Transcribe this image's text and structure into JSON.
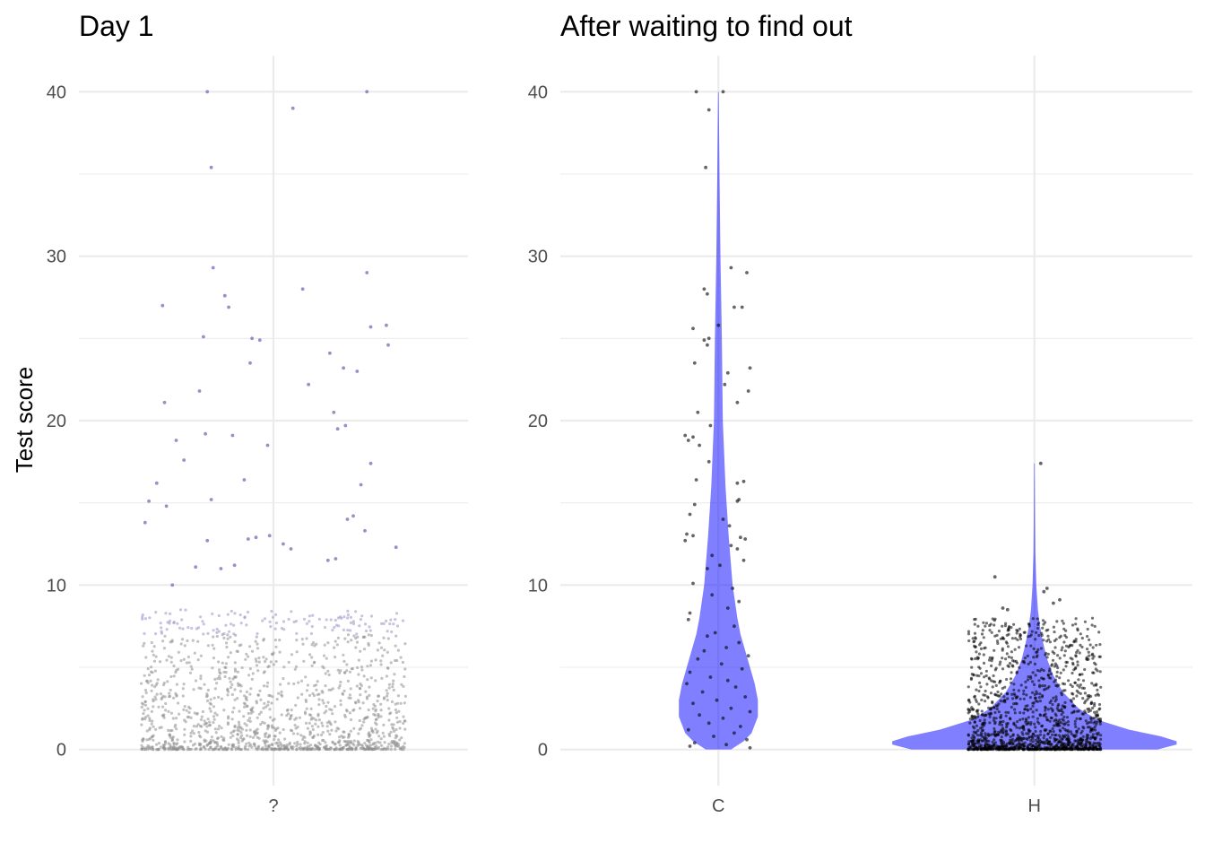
{
  "chart_data": [
    {
      "type": "scatter",
      "title": "Day 1",
      "ylabel": "Test score",
      "xlabel": "",
      "ylim": [
        -2.2,
        42.2
      ],
      "yticks": [
        0,
        10,
        20,
        30,
        40
      ],
      "grid": true,
      "categories": [
        "?"
      ],
      "point_color": "#7d74b8",
      "low_point_color": "#8f8f8f",
      "jitter_points": [
        {
          "category": "?",
          "y": 40.0,
          "dx": -0.34
        },
        {
          "category": "?",
          "y": 39.0,
          "dx": 0.1
        },
        {
          "category": "?",
          "y": 40.0,
          "dx": 0.48
        },
        {
          "category": "?",
          "y": 35.4,
          "dx": -0.32
        },
        {
          "category": "?",
          "y": 29.3,
          "dx": -0.31
        },
        {
          "category": "?",
          "y": 29.0,
          "dx": 0.48
        },
        {
          "category": "?",
          "y": 28.0,
          "dx": 0.15
        },
        {
          "category": "?",
          "y": 27.6,
          "dx": -0.25
        },
        {
          "category": "?",
          "y": 27.0,
          "dx": -0.57
        },
        {
          "category": "?",
          "y": 26.9,
          "dx": -0.23
        },
        {
          "category": "?",
          "y": 25.8,
          "dx": 0.58
        },
        {
          "category": "?",
          "y": 25.7,
          "dx": 0.5
        },
        {
          "category": "?",
          "y": 25.1,
          "dx": -0.36
        },
        {
          "category": "?",
          "y": 25.0,
          "dx": -0.11
        },
        {
          "category": "?",
          "y": 24.9,
          "dx": -0.07
        },
        {
          "category": "?",
          "y": 24.6,
          "dx": 0.59
        },
        {
          "category": "?",
          "y": 24.1,
          "dx": 0.29
        },
        {
          "category": "?",
          "y": 23.5,
          "dx": -0.12
        },
        {
          "category": "?",
          "y": 23.2,
          "dx": 0.36
        },
        {
          "category": "?",
          "y": 23.0,
          "dx": 0.43
        },
        {
          "category": "?",
          "y": 22.2,
          "dx": 0.18
        },
        {
          "category": "?",
          "y": 21.8,
          "dx": -0.38
        },
        {
          "category": "?",
          "y": 21.1,
          "dx": -0.56
        },
        {
          "category": "?",
          "y": 20.5,
          "dx": 0.31
        },
        {
          "category": "?",
          "y": 19.7,
          "dx": 0.37
        },
        {
          "category": "?",
          "y": 19.5,
          "dx": 0.33
        },
        {
          "category": "?",
          "y": 19.2,
          "dx": -0.35
        },
        {
          "category": "?",
          "y": 19.1,
          "dx": -0.21
        },
        {
          "category": "?",
          "y": 18.8,
          "dx": -0.5
        },
        {
          "category": "?",
          "y": 18.5,
          "dx": -0.03
        },
        {
          "category": "?",
          "y": 17.6,
          "dx": -0.46
        },
        {
          "category": "?",
          "y": 17.4,
          "dx": 0.5
        },
        {
          "category": "?",
          "y": 16.4,
          "dx": -0.15
        },
        {
          "category": "?",
          "y": 16.2,
          "dx": -0.6
        },
        {
          "category": "?",
          "y": 16.1,
          "dx": 0.45
        },
        {
          "category": "?",
          "y": 15.2,
          "dx": -0.32
        },
        {
          "category": "?",
          "y": 15.1,
          "dx": -0.64
        },
        {
          "category": "?",
          "y": 14.8,
          "dx": -0.55
        },
        {
          "category": "?",
          "y": 14.2,
          "dx": 0.41
        },
        {
          "category": "?",
          "y": 14.0,
          "dx": 0.38
        },
        {
          "category": "?",
          "y": 13.8,
          "dx": -0.66
        },
        {
          "category": "?",
          "y": 13.3,
          "dx": 0.47
        },
        {
          "category": "?",
          "y": 13.0,
          "dx": -0.02
        },
        {
          "category": "?",
          "y": 12.9,
          "dx": -0.09
        },
        {
          "category": "?",
          "y": 12.8,
          "dx": -0.13
        },
        {
          "category": "?",
          "y": 12.7,
          "dx": -0.34
        },
        {
          "category": "?",
          "y": 12.5,
          "dx": 0.05
        },
        {
          "category": "?",
          "y": 12.3,
          "dx": 0.63
        },
        {
          "category": "?",
          "y": 12.2,
          "dx": 0.09
        },
        {
          "category": "?",
          "y": 11.6,
          "dx": 0.32
        },
        {
          "category": "?",
          "y": 11.5,
          "dx": 0.28
        },
        {
          "category": "?",
          "y": 11.2,
          "dx": -0.2
        },
        {
          "category": "?",
          "y": 11.1,
          "dx": -0.4
        },
        {
          "category": "?",
          "y": 11.0,
          "dx": -0.27
        },
        {
          "category": "?",
          "y": 10.0,
          "dx": -0.52
        }
      ],
      "dense_cluster": {
        "category": "?",
        "count": 1400,
        "y_range": [
          0,
          8.5
        ],
        "spread": 0.68
      }
    },
    {
      "type": "scatter",
      "title": "After waiting to find out",
      "ylabel": "",
      "xlabel": "",
      "ylim": [
        -2.2,
        42.2
      ],
      "yticks": [
        0,
        10,
        20,
        30,
        40
      ],
      "grid": true,
      "categories": [
        "C",
        "H"
      ],
      "point_color": "#000000",
      "violin_color": "#0000ff",
      "violins": [
        {
          "category": "C",
          "profile": [
            {
              "y": 0.0,
              "w": 0.08
            },
            {
              "y": 0.5,
              "w": 0.16
            },
            {
              "y": 1.0,
              "w": 0.21
            },
            {
              "y": 2.0,
              "w": 0.25
            },
            {
              "y": 3.0,
              "w": 0.25
            },
            {
              "y": 4.0,
              "w": 0.23
            },
            {
              "y": 5.0,
              "w": 0.2
            },
            {
              "y": 6.0,
              "w": 0.17
            },
            {
              "y": 7.0,
              "w": 0.14
            },
            {
              "y": 8.0,
              "w": 0.12
            },
            {
              "y": 10.0,
              "w": 0.09
            },
            {
              "y": 13.0,
              "w": 0.065
            },
            {
              "y": 16.0,
              "w": 0.045
            },
            {
              "y": 20.0,
              "w": 0.028
            },
            {
              "y": 25.0,
              "w": 0.022
            },
            {
              "y": 30.0,
              "w": 0.013
            },
            {
              "y": 35.0,
              "w": 0.007
            },
            {
              "y": 40.0,
              "w": 0.002
            }
          ]
        },
        {
          "category": "H",
          "profile": [
            {
              "y": 0.0,
              "w": 0.78
            },
            {
              "y": 0.3,
              "w": 0.9
            },
            {
              "y": 0.5,
              "w": 0.9
            },
            {
              "y": 0.8,
              "w": 0.8
            },
            {
              "y": 1.2,
              "w": 0.6
            },
            {
              "y": 1.8,
              "w": 0.4
            },
            {
              "y": 2.5,
              "w": 0.28
            },
            {
              "y": 3.5,
              "w": 0.18
            },
            {
              "y": 4.5,
              "w": 0.12
            },
            {
              "y": 5.5,
              "w": 0.08
            },
            {
              "y": 6.5,
              "w": 0.055
            },
            {
              "y": 7.5,
              "w": 0.035
            },
            {
              "y": 8.5,
              "w": 0.022
            },
            {
              "y": 10.0,
              "w": 0.012
            },
            {
              "y": 12.0,
              "w": 0.006
            },
            {
              "y": 14.0,
              "w": 0.004
            },
            {
              "y": 17.4,
              "w": 0.002
            }
          ]
        }
      ],
      "jitter_points": [
        {
          "category": "C",
          "y": 40.0,
          "dx": -0.14
        },
        {
          "category": "C",
          "y": 40.0,
          "dx": 0.03
        },
        {
          "category": "C",
          "y": 38.9,
          "dx": -0.06
        },
        {
          "category": "C",
          "y": 35.4,
          "dx": -0.08
        },
        {
          "category": "C",
          "y": 29.3,
          "dx": 0.08
        },
        {
          "category": "C",
          "y": 29.0,
          "dx": 0.18
        },
        {
          "category": "C",
          "y": 28.0,
          "dx": -0.09
        },
        {
          "category": "C",
          "y": 27.7,
          "dx": -0.07
        },
        {
          "category": "C",
          "y": 26.9,
          "dx": 0.1
        },
        {
          "category": "C",
          "y": 26.9,
          "dx": 0.15
        },
        {
          "category": "C",
          "y": 25.8,
          "dx": 0.0
        },
        {
          "category": "C",
          "y": 25.6,
          "dx": -0.16
        },
        {
          "category": "C",
          "y": 25.0,
          "dx": -0.06
        },
        {
          "category": "C",
          "y": 24.9,
          "dx": -0.09
        },
        {
          "category": "C",
          "y": 24.6,
          "dx": -0.07
        },
        {
          "category": "C",
          "y": 23.5,
          "dx": -0.15
        },
        {
          "category": "C",
          "y": 23.2,
          "dx": 0.2
        },
        {
          "category": "C",
          "y": 22.9,
          "dx": 0.06
        },
        {
          "category": "C",
          "y": 22.2,
          "dx": 0.04
        },
        {
          "category": "C",
          "y": 21.8,
          "dx": 0.19
        },
        {
          "category": "C",
          "y": 21.1,
          "dx": 0.12
        },
        {
          "category": "C",
          "y": 20.5,
          "dx": -0.13
        },
        {
          "category": "C",
          "y": 19.7,
          "dx": -0.05
        },
        {
          "category": "C",
          "y": 19.1,
          "dx": -0.21
        },
        {
          "category": "C",
          "y": 19.0,
          "dx": -0.16
        },
        {
          "category": "C",
          "y": 18.8,
          "dx": -0.19
        },
        {
          "category": "C",
          "y": 18.5,
          "dx": -0.12
        },
        {
          "category": "C",
          "y": 17.5,
          "dx": -0.06
        },
        {
          "category": "C",
          "y": 16.4,
          "dx": -0.14
        },
        {
          "category": "C",
          "y": 16.3,
          "dx": 0.16
        },
        {
          "category": "C",
          "y": 16.2,
          "dx": 0.12
        },
        {
          "category": "C",
          "y": 15.2,
          "dx": 0.13
        },
        {
          "category": "C",
          "y": 15.1,
          "dx": 0.12
        },
        {
          "category": "C",
          "y": 14.9,
          "dx": -0.15
        },
        {
          "category": "C",
          "y": 14.3,
          "dx": -0.18
        },
        {
          "category": "C",
          "y": 14.0,
          "dx": 0.03
        },
        {
          "category": "C",
          "y": 13.6,
          "dx": 0.07
        },
        {
          "category": "C",
          "y": 13.1,
          "dx": -0.2
        },
        {
          "category": "C",
          "y": 13.0,
          "dx": -0.16
        },
        {
          "category": "C",
          "y": 12.9,
          "dx": 0.14
        },
        {
          "category": "C",
          "y": 12.8,
          "dx": 0.17
        },
        {
          "category": "C",
          "y": 12.7,
          "dx": -0.21
        },
        {
          "category": "C",
          "y": 12.4,
          "dx": 0.08
        },
        {
          "category": "C",
          "y": 12.2,
          "dx": 0.12
        },
        {
          "category": "C",
          "y": 11.8,
          "dx": -0.04
        },
        {
          "category": "C",
          "y": 11.5,
          "dx": 0.16
        },
        {
          "category": "C",
          "y": 11.2,
          "dx": 0.01
        },
        {
          "category": "C",
          "y": 11.0,
          "dx": -0.07
        },
        {
          "category": "C",
          "y": 10.1,
          "dx": -0.16
        },
        {
          "category": "C",
          "y": 9.8,
          "dx": 0.09
        },
        {
          "category": "C",
          "y": 9.4,
          "dx": -0.04
        },
        {
          "category": "C",
          "y": 9.0,
          "dx": 0.13
        },
        {
          "category": "C",
          "y": 8.6,
          "dx": 0.06
        },
        {
          "category": "C",
          "y": 8.3,
          "dx": -0.18
        },
        {
          "category": "C",
          "y": 7.9,
          "dx": -0.19
        },
        {
          "category": "C",
          "y": 7.5,
          "dx": 0.1
        },
        {
          "category": "C",
          "y": 7.1,
          "dx": -0.02
        },
        {
          "category": "C",
          "y": 6.9,
          "dx": -0.07
        },
        {
          "category": "C",
          "y": 6.5,
          "dx": 0.13
        },
        {
          "category": "C",
          "y": 6.2,
          "dx": 0.05
        },
        {
          "category": "C",
          "y": 6.0,
          "dx": -0.09
        },
        {
          "category": "C",
          "y": 5.7,
          "dx": 0.19
        },
        {
          "category": "C",
          "y": 5.5,
          "dx": -0.13
        },
        {
          "category": "C",
          "y": 5.2,
          "dx": 0.02
        },
        {
          "category": "C",
          "y": 4.9,
          "dx": 0.15
        },
        {
          "category": "C",
          "y": 4.7,
          "dx": -0.18
        },
        {
          "category": "C",
          "y": 4.4,
          "dx": -0.05
        },
        {
          "category": "C",
          "y": 4.2,
          "dx": 0.06
        },
        {
          "category": "C",
          "y": 4.0,
          "dx": -0.2
        },
        {
          "category": "C",
          "y": 3.8,
          "dx": 0.11
        },
        {
          "category": "C",
          "y": 3.5,
          "dx": -0.1
        },
        {
          "category": "C",
          "y": 3.2,
          "dx": 0.17
        },
        {
          "category": "C",
          "y": 3.0,
          "dx": -0.01
        },
        {
          "category": "C",
          "y": 2.8,
          "dx": -0.16
        },
        {
          "category": "C",
          "y": 2.5,
          "dx": 0.08
        },
        {
          "category": "C",
          "y": 2.3,
          "dx": 0.2
        },
        {
          "category": "C",
          "y": 2.1,
          "dx": -0.12
        },
        {
          "category": "C",
          "y": 1.9,
          "dx": 0.03
        },
        {
          "category": "C",
          "y": 1.6,
          "dx": -0.06
        },
        {
          "category": "C",
          "y": 1.4,
          "dx": 0.14
        },
        {
          "category": "C",
          "y": 1.2,
          "dx": -0.19
        },
        {
          "category": "C",
          "y": 1.0,
          "dx": 0.1
        },
        {
          "category": "C",
          "y": 0.8,
          "dx": -0.03
        },
        {
          "category": "C",
          "y": 0.6,
          "dx": 0.18
        },
        {
          "category": "C",
          "y": 0.4,
          "dx": -0.15
        },
        {
          "category": "C",
          "y": 0.3,
          "dx": 0.05
        },
        {
          "category": "C",
          "y": 0.2,
          "dx": -0.18
        },
        {
          "category": "C",
          "y": 0.1,
          "dx": 0.2
        },
        {
          "category": "H",
          "y": 17.4,
          "dx": 0.04
        },
        {
          "category": "H",
          "y": 10.5,
          "dx": -0.25
        },
        {
          "category": "H",
          "y": 9.8,
          "dx": 0.08
        },
        {
          "category": "H",
          "y": 9.6,
          "dx": 0.06
        },
        {
          "category": "H",
          "y": 9.1,
          "dx": 0.16
        },
        {
          "category": "H",
          "y": 8.9,
          "dx": 0.12
        },
        {
          "category": "H",
          "y": 8.6,
          "dx": -0.2
        },
        {
          "category": "H",
          "y": 8.5,
          "dx": -0.17
        }
      ],
      "dense_clusters": [
        {
          "category": "H",
          "count": 1400,
          "y_range": [
            0,
            8
          ],
          "spread": 0.42
        }
      ]
    }
  ]
}
